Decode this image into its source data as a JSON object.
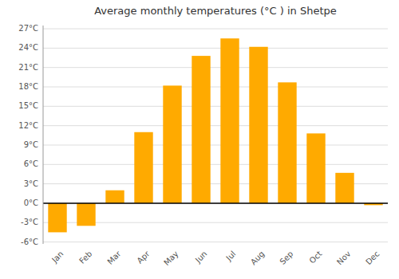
{
  "chart_data": {
    "type": "bar",
    "title": "Average monthly temperatures (°C ) in Shetpe",
    "categories": [
      "Jan",
      "Feb",
      "Mar",
      "Apr",
      "May",
      "Jun",
      "Jul",
      "Aug",
      "Sep",
      "Oct",
      "Nov",
      "Dec"
    ],
    "values": [
      -4.5,
      -3.5,
      2.0,
      11.0,
      18.2,
      22.8,
      25.5,
      24.2,
      18.7,
      10.8,
      4.7,
      -0.3
    ],
    "color": "#FFAA00",
    "ylim": [
      -6.3,
      27.5
    ],
    "yticks": [
      {
        "value": -6,
        "label": "-6°C"
      },
      {
        "value": -3,
        "label": "-3°C"
      },
      {
        "value": 0,
        "label": "0°C"
      },
      {
        "value": 3,
        "label": "3°C"
      },
      {
        "value": 6,
        "label": "6°C"
      },
      {
        "value": 9,
        "label": "9°C"
      },
      {
        "value": 12,
        "label": "12°C"
      },
      {
        "value": 15,
        "label": "15°C"
      },
      {
        "value": 18,
        "label": "18°C"
      },
      {
        "value": 21,
        "label": "21°C"
      },
      {
        "value": 24,
        "label": "24°C"
      },
      {
        "value": 27,
        "label": "27°C"
      }
    ],
    "grid": true
  }
}
